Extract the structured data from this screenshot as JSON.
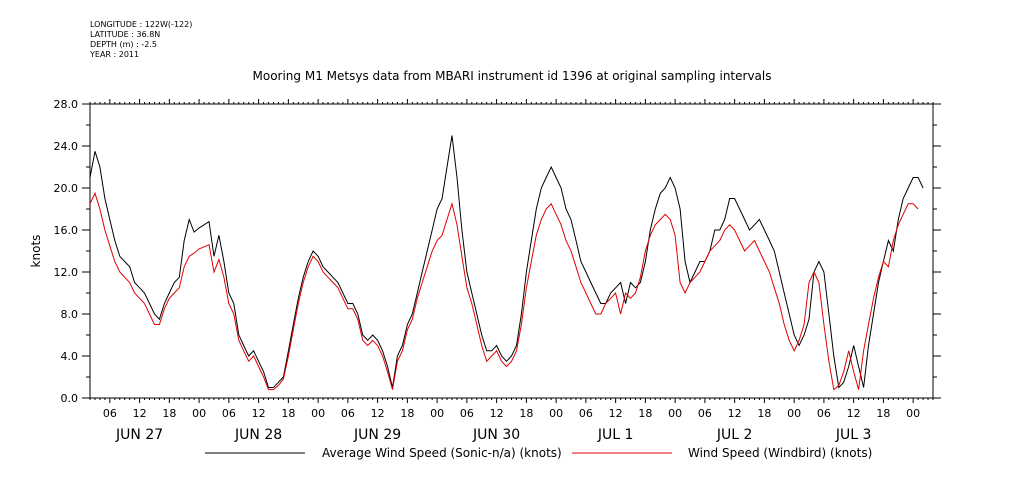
{
  "meta": {
    "longitude": "LONGITUDE : 122W(-122)",
    "latitude": "LATITUDE : 36.8N",
    "depth": "DEPTH (m) : -2.5",
    "year": "YEAR : 2011"
  },
  "chart_data": {
    "type": "line",
    "title": "Mooring M1 Metsys data from MBARI instrument id 1396 at original sampling intervals",
    "ylabel": "knots",
    "xlabel": "",
    "ylim": [
      0,
      28
    ],
    "yticks": [
      "0.0",
      "4.0",
      "8.0",
      "12.0",
      "16.0",
      "20.0",
      "24.0",
      "28.0"
    ],
    "xlim_hours": [
      0,
      170
    ],
    "xtick_hour_labels": [
      "06",
      "12",
      "18",
      "00",
      "06",
      "12",
      "18",
      "00",
      "06",
      "12",
      "18",
      "00",
      "06",
      "12",
      "18",
      "00",
      "06",
      "12",
      "18",
      "00",
      "06",
      "12",
      "18",
      "00",
      "06",
      "12",
      "18",
      "00"
    ],
    "date_labels": [
      "JUN 27",
      "JUN 28",
      "JUN 29",
      "JUN 30",
      "JUL  1",
      "JUL  2",
      "JUL  3"
    ],
    "grid": false,
    "legend_position": "bottom",
    "colors": {
      "black": "#000000",
      "red": "#e00000"
    },
    "x_hours": [
      0,
      1,
      2,
      3,
      4,
      5,
      6,
      7,
      8,
      9,
      10,
      11,
      12,
      13,
      14,
      15,
      16,
      17,
      18,
      19,
      20,
      21,
      22,
      23,
      24,
      25,
      26,
      27,
      28,
      29,
      30,
      31,
      32,
      33,
      34,
      35,
      36,
      37,
      38,
      39,
      40,
      41,
      42,
      43,
      44,
      45,
      46,
      47,
      48,
      49,
      50,
      51,
      52,
      53,
      54,
      55,
      56,
      57,
      58,
      59,
      60,
      61,
      62,
      63,
      64,
      65,
      66,
      67,
      68,
      69,
      70,
      71,
      72,
      73,
      74,
      75,
      76,
      77,
      78,
      79,
      80,
      81,
      82,
      83,
      84,
      85,
      86,
      87,
      88,
      89,
      90,
      91,
      92,
      93,
      94,
      95,
      96,
      97,
      98,
      99,
      100,
      101,
      102,
      103,
      104,
      105,
      106,
      107,
      108,
      109,
      110,
      111,
      112,
      113,
      114,
      115,
      116,
      117,
      118,
      119,
      120,
      121,
      122,
      123,
      124,
      125,
      126,
      127,
      128,
      129,
      130,
      131,
      132,
      133,
      134,
      135,
      136,
      137,
      138,
      139,
      140,
      141,
      142,
      143,
      144,
      145,
      146,
      147,
      148,
      149,
      150,
      151,
      152,
      153,
      154,
      155,
      156,
      157,
      158,
      159,
      160,
      161,
      162,
      163,
      164,
      165,
      166,
      167,
      168,
      169,
      170
    ],
    "series": [
      {
        "name": "Average Wind Speed (Sonic-n/a) (knots)",
        "color": "#000000",
        "values": [
          21,
          23.5,
          22,
          19,
          17,
          15,
          13.5,
          13,
          12.5,
          11,
          10.5,
          10,
          9,
          8,
          7.5,
          9,
          10,
          11,
          11.5,
          15,
          17,
          15.8,
          16.2,
          16.5,
          16.8,
          13.5,
          15.5,
          13,
          10,
          9,
          6,
          5,
          4,
          4.5,
          3.5,
          2.5,
          1,
          1,
          1.5,
          2,
          4.5,
          7,
          9.5,
          11.5,
          13,
          14,
          13.5,
          12.5,
          12,
          11.5,
          11,
          10,
          9,
          9,
          8,
          6,
          5.5,
          6,
          5.5,
          4.5,
          3,
          1,
          4,
          5,
          7,
          8,
          10,
          12,
          14,
          16,
          18,
          19,
          22,
          25,
          21,
          16,
          12,
          10,
          8,
          6,
          4.5,
          4.5,
          5,
          4,
          3.5,
          4,
          5,
          8,
          12,
          15,
          18,
          20,
          21,
          22,
          21,
          20,
          18,
          17,
          15,
          13,
          12,
          11,
          10,
          9,
          9,
          10,
          10.5,
          11,
          9,
          11,
          10.5,
          11,
          13,
          16,
          18,
          19.5,
          20,
          21,
          20,
          18,
          13,
          11,
          12,
          13,
          13,
          14,
          16,
          16,
          17,
          19,
          19,
          18,
          17,
          16,
          16.5,
          17,
          16,
          15,
          14,
          12,
          10,
          8,
          6,
          5,
          6,
          7.5,
          12,
          13,
          12,
          8,
          4,
          1,
          1.5,
          3,
          5,
          3,
          1,
          5,
          8,
          11,
          13,
          15,
          14,
          17,
          19,
          20,
          21,
          21,
          20
        ]
      },
      {
        "name": "Wind Speed (Windbird) (knots)",
        "color": "#e00000",
        "values": [
          18.5,
          19.5,
          18,
          16,
          14.5,
          13,
          12,
          11.5,
          11,
          10,
          9.5,
          9,
          8,
          7,
          7,
          8.5,
          9.5,
          10,
          10.5,
          12.5,
          13.5,
          13.8,
          14.2,
          14.4,
          14.6,
          12,
          13.2,
          11.5,
          9,
          8,
          5.5,
          4.5,
          3.5,
          4,
          3,
          2,
          0.8,
          0.8,
          1.2,
          1.8,
          4,
          6.5,
          9,
          11,
          12.5,
          13.5,
          13,
          12,
          11.5,
          11,
          10.5,
          9.5,
          8.5,
          8.5,
          7.5,
          5.5,
          5,
          5.5,
          5,
          4,
          2.5,
          0.8,
          3.5,
          4.5,
          6.5,
          7.5,
          9.5,
          11,
          12.5,
          14,
          15,
          15.5,
          17,
          18.5,
          16.5,
          13.5,
          10.5,
          9,
          7,
          5,
          3.5,
          4,
          4.5,
          3.5,
          3,
          3.5,
          4.5,
          7,
          10.5,
          13,
          15.5,
          17,
          18,
          18.5,
          17.5,
          16.5,
          15,
          14,
          12.5,
          11,
          10,
          9,
          8,
          8,
          9,
          9.5,
          10,
          8,
          10,
          9.5,
          10,
          11.5,
          14,
          15.5,
          16.5,
          17,
          17.5,
          17,
          15.5,
          11,
          10,
          11,
          11.5,
          12,
          13,
          14,
          14.5,
          15,
          16,
          16.5,
          16,
          15,
          14,
          14.5,
          15,
          14,
          13,
          12,
          10.5,
          9,
          7,
          5.5,
          4.5,
          5.5,
          7,
          11,
          12,
          11,
          7,
          3.5,
          0.8,
          1.2,
          2.5,
          4.5,
          2.5,
          0.8,
          4.5,
          7,
          9.5,
          11.5,
          13,
          12.5,
          15,
          16.5,
          17.5,
          18.5,
          18.5,
          18
        ]
      }
    ]
  }
}
